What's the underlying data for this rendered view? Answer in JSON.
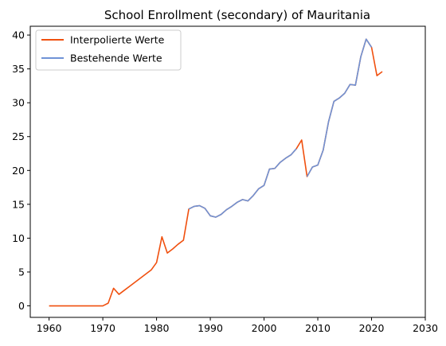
{
  "chart_data": {
    "type": "line",
    "title": "School Enrollment (secondary) of Mauritania",
    "xlabel": "",
    "ylabel": "",
    "xlim": [
      1960,
      2030
    ],
    "ylim": [
      0,
      40
    ],
    "x_ticks": [
      1960,
      1970,
      1980,
      1990,
      2000,
      2010,
      2020,
      2030
    ],
    "y_ticks": [
      0,
      5,
      10,
      15,
      20,
      25,
      30,
      35,
      40
    ],
    "grid": false,
    "legend_position": "top-left",
    "series": [
      {
        "name": "Interpolierte Werte",
        "color": "#f0500f",
        "x": [
          1960,
          1961,
          1962,
          1963,
          1964,
          1965,
          1966,
          1967,
          1968,
          1969,
          1970,
          1971,
          1972,
          1973,
          1974,
          1975,
          1976,
          1977,
          1978,
          1979,
          1980,
          1981,
          1982,
          1983,
          1984,
          1985,
          1986,
          1987,
          1988,
          1989,
          1990,
          1991,
          1992,
          1993,
          1994,
          1995,
          1996,
          1997,
          1998,
          1999,
          2000,
          2001,
          2002,
          2003,
          2004,
          2005,
          2006,
          2007,
          2008,
          2009,
          2010,
          2011,
          2012,
          2013,
          2014,
          2015,
          2016,
          2017,
          2018,
          2019,
          2020,
          2021,
          2022
        ],
        "values": [
          0,
          0,
          0,
          0,
          0,
          0,
          0,
          0,
          0,
          0,
          0,
          0.4,
          2.6,
          1.7,
          2.3,
          2.9,
          3.5,
          4.1,
          4.7,
          5.3,
          6.4,
          10.2,
          7.8,
          8.4,
          9.1,
          9.7,
          14.3,
          14.7,
          14.8,
          14.4,
          13.3,
          13.1,
          13.5,
          14.2,
          14.7,
          15.3,
          15.7,
          15.5,
          16.3,
          17.3,
          17.8,
          20.2,
          20.3,
          21.2,
          21.8,
          22.3,
          23.2,
          24.5,
          19.1,
          20.5,
          20.8,
          23.0,
          27.2,
          30.2,
          30.7,
          31.4,
          32.7,
          32.6,
          36.8,
          39.4,
          38.2,
          34.0,
          34.6
        ]
      },
      {
        "name": "Bestehende Werte",
        "color": "#6f93d6",
        "x": [
          1986,
          1987,
          1988,
          1989,
          1990,
          1991,
          1992,
          1993,
          1994,
          1995,
          1996,
          1997,
          1998,
          1999,
          2000,
          2001,
          2002,
          2003,
          2004,
          2005,
          2006,
          null,
          2008,
          2009,
          2010,
          2011,
          2012,
          2013,
          2014,
          2015,
          2016,
          2017,
          2018,
          2019,
          2020
        ],
        "values": [
          14.3,
          14.7,
          14.8,
          14.4,
          13.3,
          13.1,
          13.5,
          14.2,
          14.7,
          15.3,
          15.7,
          15.5,
          16.3,
          17.3,
          17.8,
          20.2,
          20.3,
          21.2,
          21.8,
          22.3,
          23.2,
          null,
          19.1,
          20.5,
          20.8,
          23.0,
          27.2,
          30.2,
          30.7,
          31.4,
          32.7,
          32.6,
          36.8,
          39.4,
          38.2
        ]
      }
    ]
  }
}
